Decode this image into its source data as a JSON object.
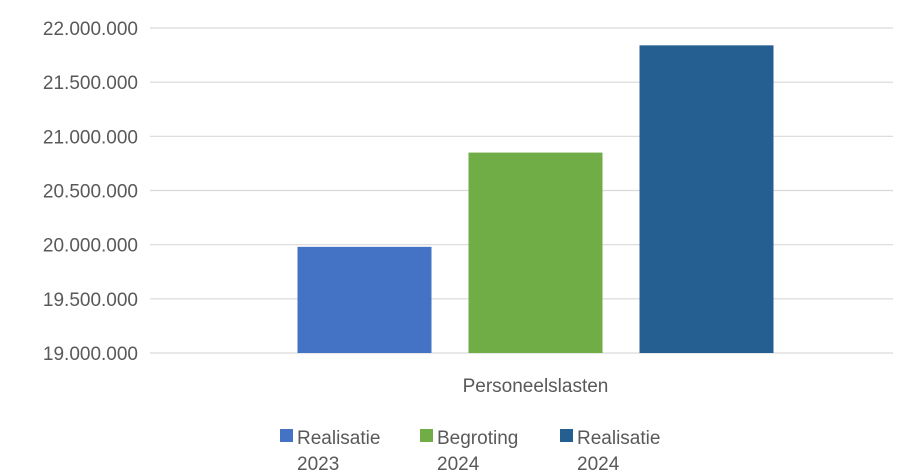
{
  "chart_data": {
    "type": "bar",
    "categories": [
      "Personeelslasten"
    ],
    "series": [
      {
        "name": "Realisatie 2023",
        "legend_lines": [
          "Realisatie",
          "2023"
        ],
        "values": [
          19980000
        ],
        "color": "#4472C4"
      },
      {
        "name": "Begroting 2024",
        "legend_lines": [
          "Begroting",
          "2024"
        ],
        "values": [
          20850000
        ],
        "color": "#70AD47"
      },
      {
        "name": "Realisatie 2024",
        "legend_lines": [
          "Realisatie",
          "2024"
        ],
        "values": [
          21840000
        ],
        "color": "#255E91"
      }
    ],
    "title": "",
    "xlabel": "",
    "ylabel": "",
    "ylim": [
      19000000,
      22000000
    ],
    "yticks": [
      19000000,
      19500000,
      20000000,
      20500000,
      21000000,
      21500000,
      22000000
    ],
    "ytick_labels": [
      "19.000.000",
      "19.500.000",
      "20.000.000",
      "20.500.000",
      "21.000.000",
      "21.500.000",
      "22.000.000"
    ],
    "grid": true,
    "legend_position": "bottom",
    "gridline_color": "#D9D9D9"
  }
}
